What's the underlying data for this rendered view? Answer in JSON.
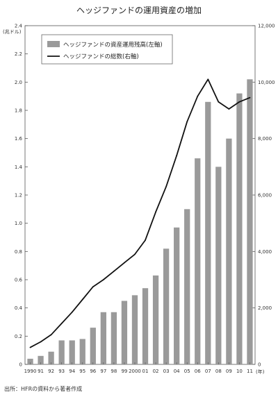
{
  "chart_data": {
    "type": "bar",
    "title": "ヘッジファンドの運用資産の増加",
    "left_axis": {
      "unit": "(兆ドル)",
      "ylim": [
        0,
        2.4
      ],
      "ticks": [
        "0",
        "0.2",
        "0.4",
        "0.6",
        "0.8",
        "1.0",
        "1.2",
        "1.4",
        "1.6",
        "1.8",
        "2.0",
        "2.2",
        "2.4"
      ]
    },
    "right_axis": {
      "ylim": [
        0,
        12000
      ],
      "ticks": [
        "0",
        "2,000",
        "4,000",
        "6,000",
        "8,000",
        "10,000",
        "12,000"
      ]
    },
    "x_unit": "(年)",
    "categories": [
      "1990",
      "91",
      "92",
      "93",
      "94",
      "95",
      "96",
      "97",
      "98",
      "99",
      "2000",
      "01",
      "02",
      "03",
      "04",
      "05",
      "06",
      "07",
      "08",
      "09",
      "10",
      "11"
    ],
    "series": [
      {
        "name": "ヘッジファンドの資産運用残高(左軸)",
        "type": "bar",
        "axis": "left",
        "color": "#9a9a9a",
        "values": [
          0.04,
          0.06,
          0.09,
          0.17,
          0.17,
          0.18,
          0.26,
          0.37,
          0.37,
          0.45,
          0.49,
          0.54,
          0.63,
          0.82,
          0.97,
          1.1,
          1.46,
          1.86,
          1.4,
          1.6,
          1.92,
          2.02
        ]
      },
      {
        "name": "ヘッジファンドの総数(右軸)",
        "type": "line",
        "axis": "right",
        "color": "#111111",
        "values": [
          600,
          800,
          1050,
          1450,
          1850,
          2300,
          2750,
          3000,
          3300,
          3600,
          3900,
          4400,
          5400,
          6300,
          7400,
          8600,
          9500,
          10100,
          9300,
          9050,
          9300,
          9450
        ]
      }
    ],
    "legend": "top-left",
    "source": "出所：HFRの資料から著者作成"
  }
}
